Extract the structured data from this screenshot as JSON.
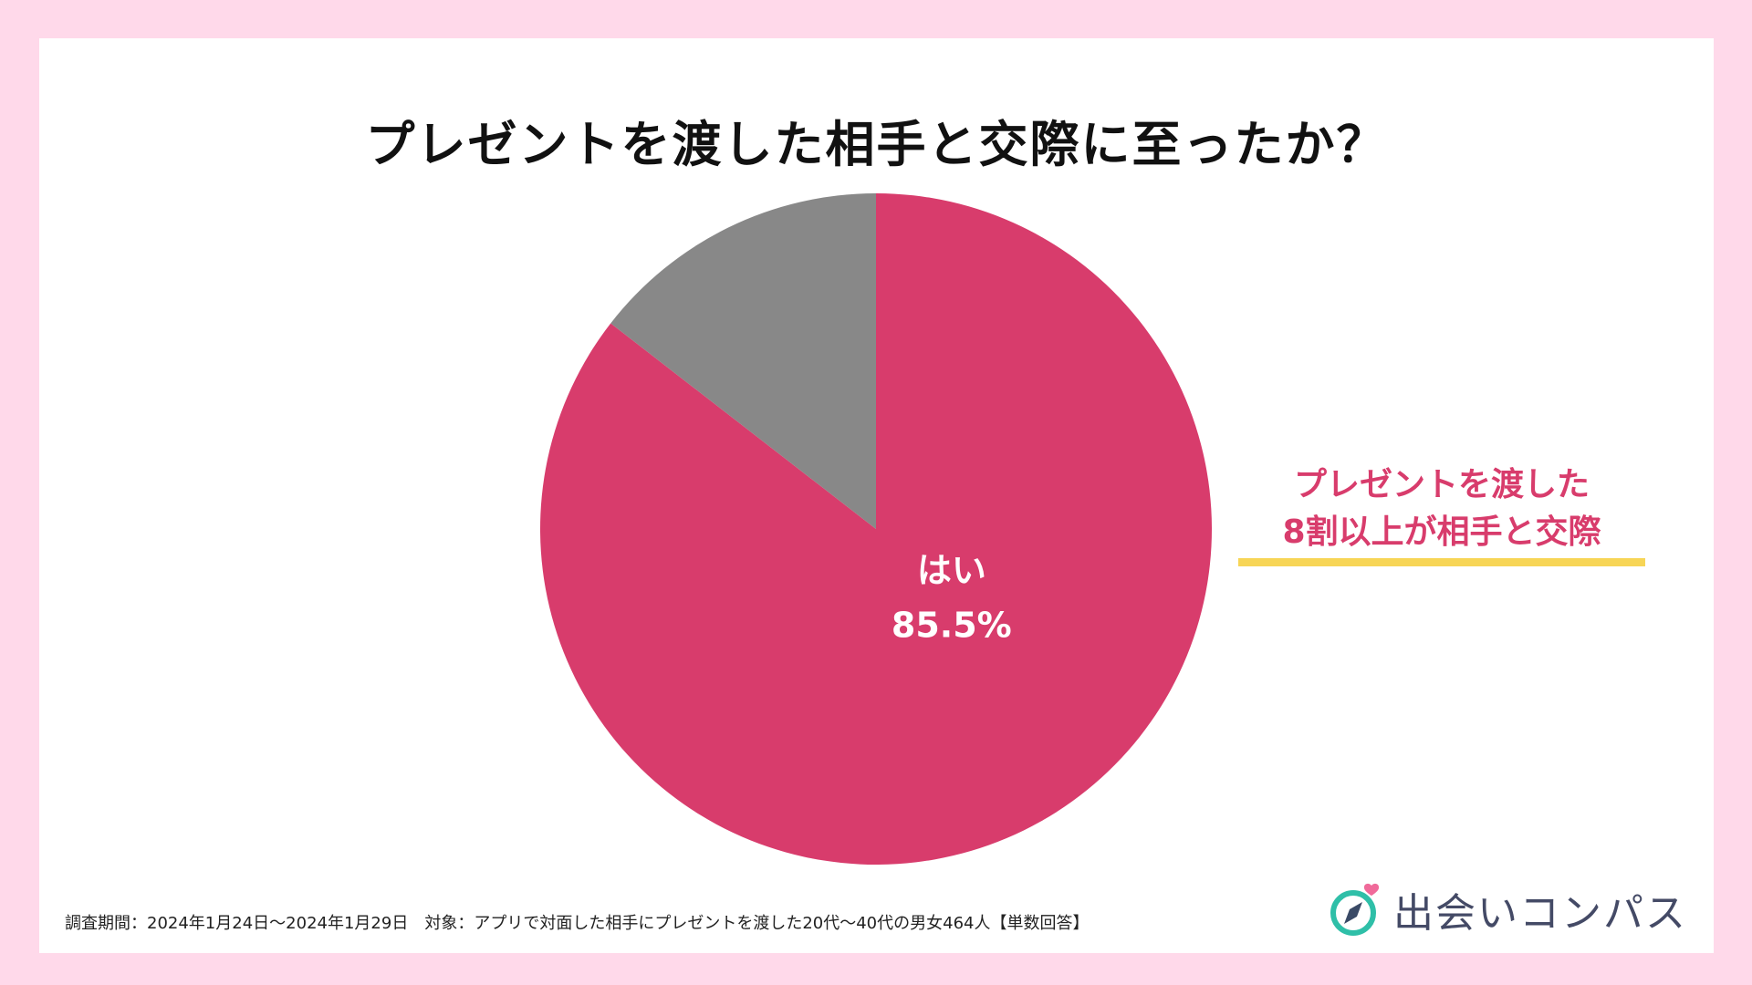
{
  "chart_data": {
    "type": "pie",
    "title": "プレゼントを渡した相手と交際に至ったか？",
    "slices": [
      {
        "label": "はい",
        "value": 85.5,
        "value_label": "85.5%",
        "color": "#d83c6c"
      },
      {
        "label": "",
        "value": 14.5,
        "value_label": "",
        "color": "#888888"
      }
    ],
    "start": "12 o'clock",
    "direction": "clockwise"
  },
  "callout": {
    "lines": [
      "プレゼントを渡した",
      "8割以上が相手と交際"
    ],
    "color": "#d83c6c",
    "underline_color": "#f7d556"
  },
  "footnote": "調査期間：2024年1月24日〜2024年1月29日　対象：アプリで対面した相手にプレゼントを渡した20代〜40代の男女464人【単数回答】",
  "logo": {
    "text": "出会いコンパス",
    "icon": "compass-heart-icon",
    "colors": {
      "ring": "#2fbfa8",
      "needle": "#3a4a66",
      "heart": "#f06a9a"
    }
  },
  "colors": {
    "background": "#ffd9ea",
    "card": "#ffffff"
  }
}
